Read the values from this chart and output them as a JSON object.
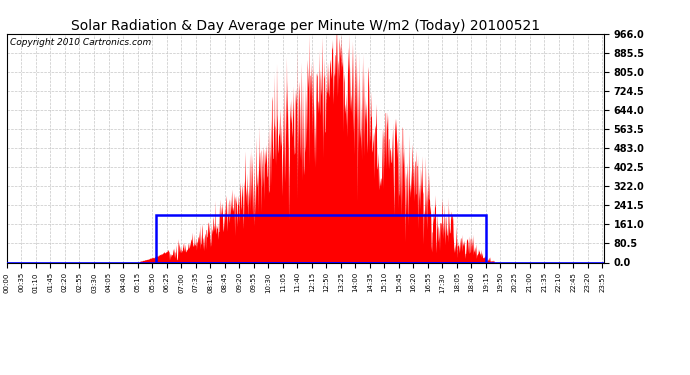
{
  "title": "Solar Radiation & Day Average per Minute W/m2 (Today) 20100521",
  "copyright": "Copyright 2010 Cartronics.com",
  "yticks": [
    0.0,
    80.5,
    161.0,
    241.5,
    322.0,
    402.5,
    483.0,
    563.5,
    644.0,
    724.5,
    805.0,
    885.5,
    966.0
  ],
  "ymax": 966.0,
  "ymin": 0.0,
  "bg_color": "#ffffff",
  "plot_bg_color": "#ffffff",
  "grid_color": "#c0c0c0",
  "bar_color": "#ff0000",
  "avg_box_color": "#0000ff",
  "title_fontsize": 10,
  "copyright_fontsize": 6.5,
  "n_minutes": 1440,
  "sunrise_minute": 320,
  "sunset_minute": 1175,
  "avg_value": 201.0,
  "xtick_interval": 35
}
